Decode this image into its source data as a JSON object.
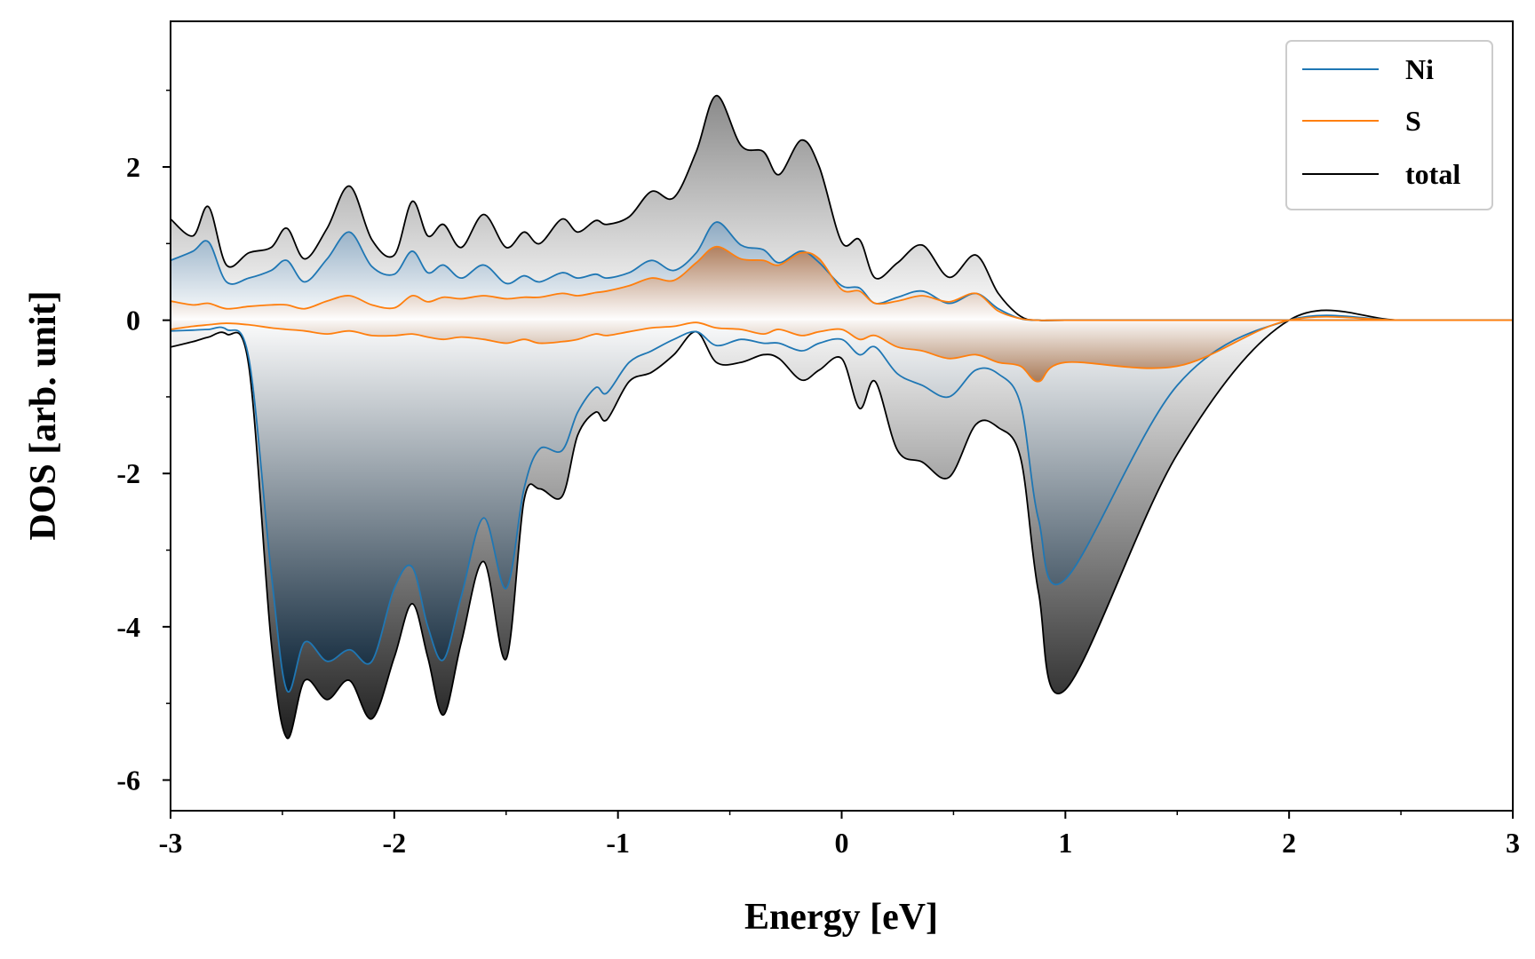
{
  "chart_data": {
    "type": "line",
    "title": "",
    "xlabel": "Energy [eV]",
    "ylabel": "DOS [arb. unit]",
    "xlim": [
      -3,
      3
    ],
    "ylim": [
      -6.4,
      3.9
    ],
    "x_ticks": [
      -3,
      -2,
      -1,
      0,
      1,
      2,
      3
    ],
    "x_tick_labels": [
      "-3",
      "-2",
      "-1",
      "0",
      "1",
      "2",
      "3"
    ],
    "y_ticks": [
      -6,
      -4,
      -2,
      0,
      2
    ],
    "y_tick_labels": [
      "-6",
      "-4",
      "-2",
      "0",
      "2"
    ],
    "grid": false,
    "legend_position": "top-right",
    "legend": [
      "Ni",
      "S",
      "total"
    ],
    "colors": {
      "Ni": "#1f77b4",
      "S": "#ff7f0e",
      "total": "#000000"
    },
    "x": [
      -3.0,
      -2.9,
      -2.83,
      -2.75,
      -2.65,
      -2.55,
      -2.48,
      -2.4,
      -2.3,
      -2.2,
      -2.1,
      -2.0,
      -1.92,
      -1.85,
      -1.78,
      -1.7,
      -1.6,
      -1.5,
      -1.42,
      -1.35,
      -1.25,
      -1.18,
      -1.1,
      -1.05,
      -0.95,
      -0.85,
      -0.75,
      -0.65,
      -0.56,
      -0.45,
      -0.35,
      -0.28,
      -0.18,
      -0.1,
      0.0,
      0.08,
      0.15,
      0.25,
      0.36,
      0.48,
      0.6,
      0.7,
      0.8,
      0.88,
      1.0,
      1.5,
      2.0,
      2.5,
      3.0
    ],
    "series": [
      {
        "name": "Ni",
        "spin_up": [
          0.78,
          0.9,
          1.02,
          0.5,
          0.55,
          0.65,
          0.78,
          0.5,
          0.8,
          1.15,
          0.7,
          0.6,
          0.9,
          0.62,
          0.72,
          0.55,
          0.72,
          0.48,
          0.58,
          0.5,
          0.62,
          0.55,
          0.6,
          0.55,
          0.62,
          0.78,
          0.65,
          0.88,
          1.28,
          0.98,
          0.92,
          0.75,
          0.9,
          0.75,
          0.45,
          0.42,
          0.22,
          0.3,
          0.38,
          0.22,
          0.35,
          0.15,
          0.02,
          0.0,
          0.0,
          0.0,
          0.0,
          0.0,
          0.0
        ],
        "spin_down": [
          -0.14,
          -0.13,
          -0.12,
          -0.12,
          -0.5,
          -3.3,
          -4.83,
          -4.2,
          -4.45,
          -4.3,
          -4.45,
          -3.5,
          -3.22,
          -4.0,
          -4.43,
          -3.6,
          -2.58,
          -3.5,
          -2.2,
          -1.68,
          -1.7,
          -1.2,
          -0.88,
          -0.95,
          -0.55,
          -0.4,
          -0.25,
          -0.15,
          -0.33,
          -0.25,
          -0.3,
          -0.3,
          -0.4,
          -0.3,
          -0.25,
          -0.45,
          -0.35,
          -0.7,
          -0.85,
          -1.0,
          -0.65,
          -0.7,
          -1.1,
          -2.6,
          -3.38,
          -0.85,
          0.0,
          0.0,
          0.0
        ]
      },
      {
        "name": "S",
        "spin_up": [
          0.25,
          0.2,
          0.22,
          0.15,
          0.18,
          0.2,
          0.2,
          0.15,
          0.25,
          0.32,
          0.2,
          0.16,
          0.32,
          0.24,
          0.3,
          0.28,
          0.32,
          0.28,
          0.3,
          0.3,
          0.35,
          0.32,
          0.36,
          0.38,
          0.45,
          0.55,
          0.52,
          0.75,
          0.96,
          0.8,
          0.78,
          0.72,
          0.88,
          0.8,
          0.4,
          0.38,
          0.22,
          0.25,
          0.32,
          0.24,
          0.35,
          0.12,
          0.02,
          0.0,
          0.0,
          0.0,
          0.0,
          0.0,
          0.0
        ],
        "spin_down": [
          -0.12,
          -0.08,
          -0.06,
          -0.04,
          -0.06,
          -0.1,
          -0.12,
          -0.14,
          -0.18,
          -0.14,
          -0.2,
          -0.2,
          -0.18,
          -0.22,
          -0.25,
          -0.22,
          -0.25,
          -0.3,
          -0.25,
          -0.3,
          -0.28,
          -0.25,
          -0.18,
          -0.2,
          -0.15,
          -0.1,
          -0.08,
          -0.03,
          -0.1,
          -0.12,
          -0.18,
          -0.12,
          -0.2,
          -0.15,
          -0.12,
          -0.25,
          -0.2,
          -0.35,
          -0.4,
          -0.5,
          -0.45,
          -0.55,
          -0.6,
          -0.8,
          -0.55,
          -0.6,
          0.0,
          0.0,
          0.0
        ]
      },
      {
        "name": "total",
        "spin_up": [
          1.32,
          1.1,
          1.48,
          0.72,
          0.88,
          0.95,
          1.2,
          0.8,
          1.2,
          1.75,
          1.05,
          0.85,
          1.55,
          1.1,
          1.25,
          0.95,
          1.38,
          0.95,
          1.15,
          1.0,
          1.32,
          1.15,
          1.3,
          1.25,
          1.35,
          1.68,
          1.6,
          2.2,
          2.93,
          2.28,
          2.2,
          1.9,
          2.35,
          2.0,
          1.02,
          1.05,
          0.55,
          0.75,
          0.98,
          0.56,
          0.85,
          0.35,
          0.05,
          0.0,
          0.0,
          0.0,
          0.0,
          0.0,
          0.0
        ],
        "spin_down": [
          -0.35,
          -0.28,
          -0.22,
          -0.18,
          -0.6,
          -4.2,
          -5.45,
          -4.7,
          -4.95,
          -4.7,
          -5.2,
          -4.4,
          -3.7,
          -4.4,
          -5.15,
          -4.2,
          -3.15,
          -4.42,
          -2.35,
          -2.2,
          -2.3,
          -1.5,
          -1.2,
          -1.3,
          -0.8,
          -0.68,
          -0.45,
          -0.15,
          -0.55,
          -0.55,
          -0.45,
          -0.5,
          -0.78,
          -0.65,
          -0.5,
          -1.15,
          -0.8,
          -1.7,
          -1.85,
          -2.05,
          -1.36,
          -1.4,
          -1.8,
          -3.55,
          -4.82,
          -1.75,
          0.0,
          0.0,
          0.0
        ]
      }
    ]
  }
}
